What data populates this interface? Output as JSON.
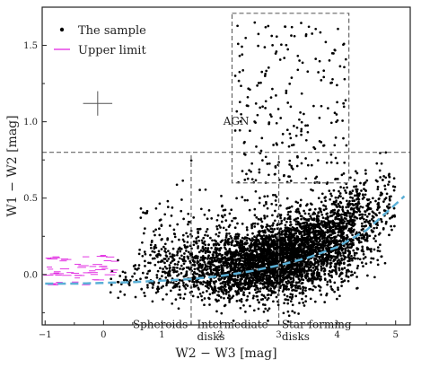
{
  "chart_data": {
    "type": "scatter",
    "xlabel": "W2 − W3 [mag]",
    "ylabel": "W1 − W2 [mag]",
    "xlim": [
      -1.05,
      5.25
    ],
    "ylim": [
      -0.33,
      1.75
    ],
    "xticks": [
      -1,
      0,
      1,
      2,
      3,
      4,
      5
    ],
    "yticks": [
      0.0,
      0.5,
      1.0,
      1.5
    ],
    "xtick_labels": [
      "−1",
      "0",
      "1",
      "2",
      "3",
      "4",
      "5"
    ],
    "ytick_labels": [
      "0.0",
      "0.5",
      "1.0",
      "1.5"
    ],
    "grid": false,
    "legend": {
      "position": "top-left",
      "entries": [
        {
          "label": "The sample",
          "marker": "point",
          "color": "#000000"
        },
        {
          "label": "Upper limit",
          "marker": "line",
          "color": "#e020e0"
        }
      ]
    },
    "series": [
      {
        "name": "The sample",
        "color": "#000000",
        "description": "dense cloud of galaxies rising from y≈0 near x≈1 to y≈0.3 near x≈4.5, with sparse scatter up to y≈1.7 in the AGN box",
        "approx_trend": {
          "x": [
            0.5,
            1.5,
            2.5,
            3.0,
            3.5,
            4.0,
            4.5
          ],
          "y": [
            0.0,
            0.0,
            0.03,
            0.06,
            0.12,
            0.2,
            0.3
          ]
        }
      },
      {
        "name": "Upper limit",
        "color": "#e020e0",
        "description": "upper-limit points with horizontal error bars",
        "x_range": [
          -1.0,
          0.2
        ],
        "y_range": [
          -0.07,
          0.13
        ]
      }
    ],
    "fit_curve": {
      "color": "#5aafd6",
      "style": "dashed",
      "x": [
        -1.0,
        -0.5,
        0.0,
        0.5,
        1.0,
        1.5,
        2.0,
        2.5,
        3.0,
        3.5,
        4.0,
        4.5,
        5.0,
        5.2
      ],
      "y": [
        -0.06,
        -0.06,
        -0.055,
        -0.05,
        -0.04,
        -0.03,
        -0.01,
        0.02,
        0.06,
        0.11,
        0.18,
        0.29,
        0.46,
        0.53
      ]
    },
    "error_bar": {
      "x": -0.1,
      "y": 1.12,
      "xerr": 0.25,
      "yerr": 0.08
    },
    "boundaries": [
      {
        "type": "hline",
        "y": 0.8,
        "x_from": -1.05,
        "x_to": 5.25
      },
      {
        "type": "vline",
        "x": 1.5,
        "y_from": -0.33,
        "y_to": 0.8
      },
      {
        "type": "vline",
        "x": 3.0,
        "y_from": -0.33,
        "y_to": 0.8
      },
      {
        "type": "box",
        "x": [
          2.2,
          4.2
        ],
        "y": [
          0.6,
          1.71
        ]
      }
    ],
    "annotations": [
      {
        "text": "AGN",
        "x": 2.05,
        "y": 0.98
      },
      {
        "text": "Spheroids",
        "x": 0.5,
        "y": -0.35
      },
      {
        "text": "Intermediate",
        "x": 1.6,
        "y": -0.35
      },
      {
        "text": "disks",
        "x": 1.6,
        "y": -0.43
      },
      {
        "text": "Star forming",
        "x": 3.05,
        "y": -0.35
      },
      {
        "text": "disks",
        "x": 3.05,
        "y": -0.43
      }
    ]
  }
}
